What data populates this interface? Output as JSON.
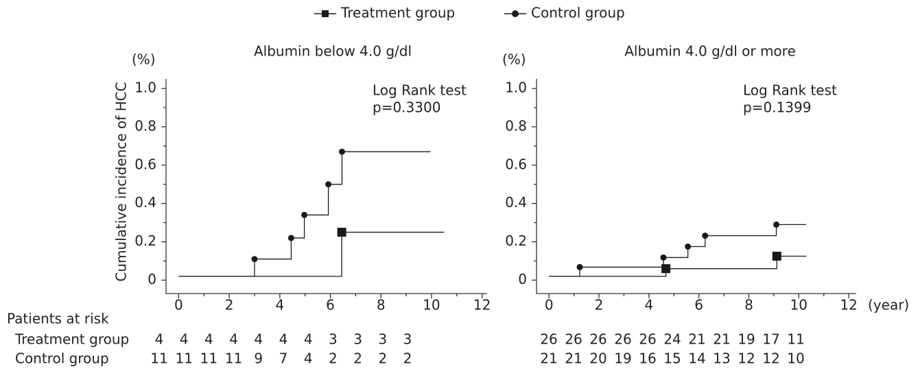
{
  "y_label": "Cumulative incidence of HCC",
  "x_unit": "(year)",
  "risk_title": "Patients at risk",
  "chart_data": [
    {
      "type": "step",
      "title": "Albumin below 4.0 g/dl",
      "y_unit": "(%)",
      "annotation": [
        "Log Rank test",
        "p=0.3300"
      ],
      "xlim": [
        -0.5,
        12.2
      ],
      "ylim": [
        -0.07,
        1.05
      ],
      "xticks": [
        0,
        2,
        4,
        6,
        8,
        10,
        12
      ],
      "yticks": [
        0,
        0.2,
        0.4,
        0.6,
        0.8,
        {
          "value": 1,
          "label": "1.0"
        }
      ],
      "series": [
        {
          "name": "Treatment group",
          "color": "#1a1a1a",
          "marker": "square",
          "x": [
            0,
            6.45,
            10.5
          ],
          "values": [
            0.02,
            0.25,
            0.25
          ],
          "at_risk": [
            4,
            4,
            4,
            4,
            4,
            4,
            4,
            3,
            3,
            3,
            3
          ]
        },
        {
          "name": "Control group",
          "color": "#1a1a1a",
          "marker": "circle",
          "x": [
            0,
            3.0,
            4.45,
            4.97,
            5.92,
            6.46,
            9.96
          ],
          "values": [
            0.02,
            0.11,
            0.22,
            0.34,
            0.5,
            0.67,
            0.67
          ],
          "at_risk": [
            11,
            11,
            11,
            11,
            9,
            7,
            4,
            2,
            2,
            2,
            2
          ]
        }
      ]
    },
    {
      "type": "step",
      "title": "Albumin 4.0 g/dl or more",
      "y_unit": "(%)",
      "annotation": [
        "Log Rank test",
        "p=0.1399"
      ],
      "xlim": [
        -0.5,
        12.3
      ],
      "ylim": [
        -0.07,
        1.05
      ],
      "xticks": [
        0,
        2,
        4,
        6,
        8,
        10,
        12
      ],
      "yticks": [
        0,
        0.2,
        0.4,
        0.6,
        0.8,
        {
          "value": 1,
          "label": "1.0"
        }
      ],
      "series": [
        {
          "color": "#1a1a1a",
          "marker": "square",
          "x": [
            0,
            4.68,
            9.12,
            10.3
          ],
          "values": [
            0.02,
            0.06,
            0.125,
            0.125
          ],
          "at_risk": [
            26,
            26,
            26,
            26,
            26,
            24,
            21,
            21,
            19,
            17,
            11
          ]
        },
        {
          "color": "#1a1a1a",
          "marker": "circle",
          "x": [
            0,
            1.23,
            4.58,
            5.56,
            6.25,
            9.1,
            10.3
          ],
          "values": [
            0.02,
            0.068,
            0.118,
            0.175,
            0.232,
            0.29,
            0.29
          ],
          "at_risk": [
            21,
            21,
            20,
            19,
            16,
            15,
            14,
            13,
            12,
            12,
            10
          ]
        }
      ]
    }
  ]
}
